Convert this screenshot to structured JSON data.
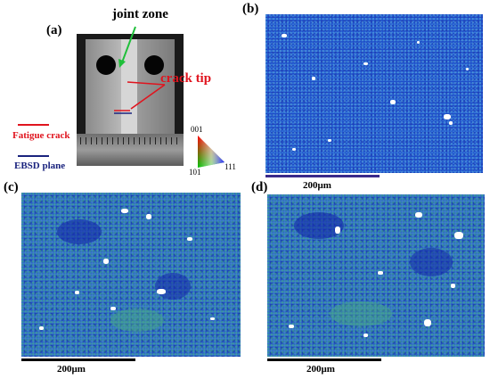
{
  "panels": {
    "a": {
      "label": "(a)",
      "annotation_joint_zone": "joint zone",
      "annotation_crack_tip": "crack tip",
      "legend_fatigue_crack": "Fatigue crack",
      "legend_ebsd_plane": "EBSD plane",
      "ipf_001": "001",
      "ipf_101": "101",
      "ipf_111": "111"
    },
    "b": {
      "label": "(b)",
      "scale": "200μm"
    },
    "c": {
      "label": "(c)",
      "scale": "200μm"
    },
    "d": {
      "label": "(d)",
      "scale": "200μm"
    }
  },
  "colors": {
    "fatigue_crack": "#e0141e",
    "ebsd_plane": "#1a237e",
    "joint_arrow": "#1fbf3a",
    "crack_tip_text": "#e0141e",
    "ebsd_base": "#1f4fc9"
  }
}
